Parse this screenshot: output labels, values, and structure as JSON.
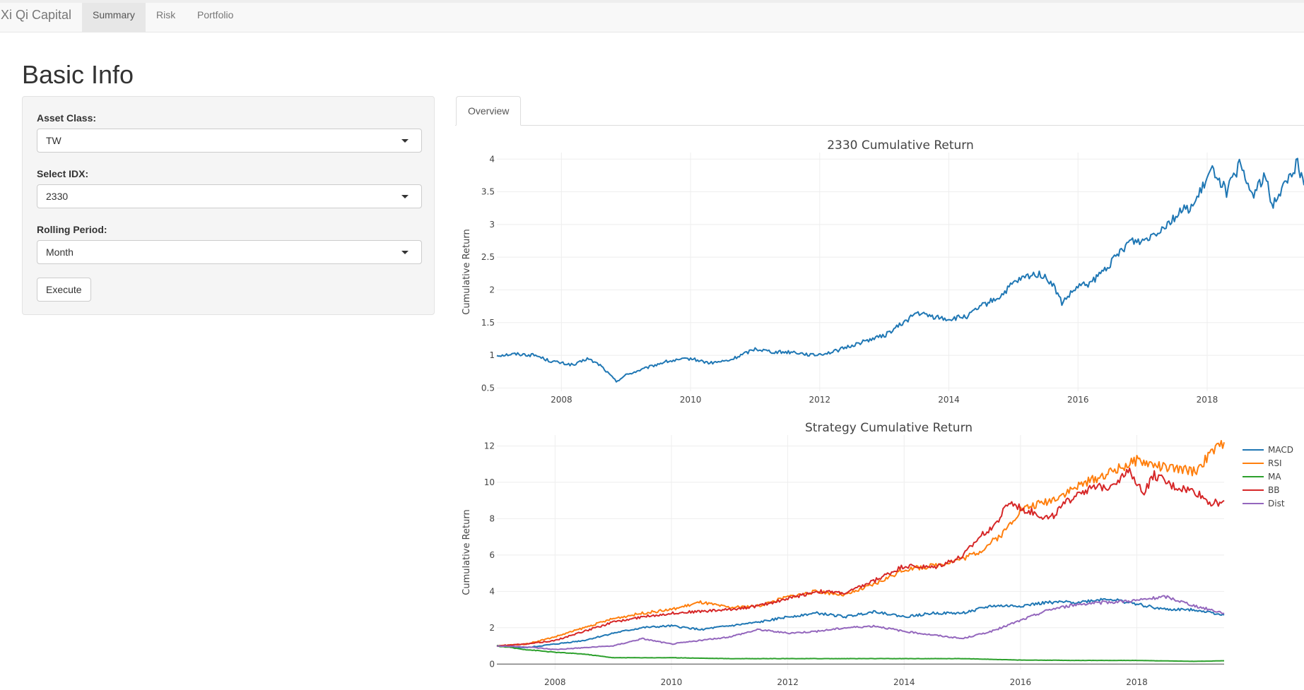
{
  "navbar": {
    "brand": "Xi Qi Capital",
    "tabs": [
      {
        "label": "Summary",
        "active": true
      },
      {
        "label": "Risk",
        "active": false
      },
      {
        "label": "Portfolio",
        "active": false
      }
    ]
  },
  "page": {
    "title": "Basic Info"
  },
  "sidebar": {
    "asset_class": {
      "label": "Asset Class:",
      "value": "TW"
    },
    "select_idx": {
      "label": "Select IDX:",
      "value": "2330"
    },
    "rolling_period": {
      "label": "Rolling Period:",
      "value": "Month"
    },
    "execute_label": "Execute"
  },
  "main": {
    "tabs": [
      {
        "label": "Overview",
        "active": true
      }
    ]
  },
  "colors": {
    "macd": "#1f77b4",
    "rsi": "#ff7f0e",
    "ma": "#2ca02c",
    "bb": "#d62728",
    "dist": "#9467bd"
  },
  "chart_data": [
    {
      "type": "line",
      "title": "2330 Cumulative Return",
      "xlabel": "",
      "ylabel": "Cumulative Return",
      "xlim": [
        2007.0,
        2019.5
      ],
      "ylim": [
        0.45,
        4.1
      ],
      "xticks": [
        2008,
        2010,
        2012,
        2014,
        2016,
        2018
      ],
      "yticks": [
        0.5,
        1,
        1.5,
        2,
        2.5,
        3,
        3.5,
        4
      ],
      "ytick_labels": [
        "0.5",
        "1",
        "1.5",
        "2",
        "2.5",
        "3",
        "3.5",
        "4"
      ],
      "grid": true,
      "legend": "none",
      "series": [
        {
          "color": "#1f77b4",
          "x": [
            2007.0,
            2007.3,
            2007.6,
            2007.8,
            2008.0,
            2008.2,
            2008.4,
            2008.6,
            2008.85,
            2009.0,
            2009.3,
            2009.6,
            2010.0,
            2010.3,
            2010.6,
            2011.0,
            2011.3,
            2011.6,
            2011.9,
            2012.2,
            2012.5,
            2012.8,
            2013.0,
            2013.3,
            2013.5,
            2013.7,
            2014.0,
            2014.3,
            2014.5,
            2014.8,
            2015.0,
            2015.2,
            2015.4,
            2015.6,
            2015.75,
            2016.0,
            2016.2,
            2016.5,
            2016.8,
            2017.0,
            2017.3,
            2017.6,
            2017.8,
            2018.0,
            2018.1,
            2018.3,
            2018.5,
            2018.7,
            2018.9,
            2019.0,
            2019.2,
            2019.4,
            2019.5
          ],
          "y": [
            1.0,
            1.02,
            1.0,
            0.92,
            0.88,
            0.85,
            0.95,
            0.85,
            0.6,
            0.7,
            0.8,
            0.9,
            0.95,
            0.88,
            0.92,
            1.1,
            1.05,
            1.05,
            1.0,
            1.05,
            1.15,
            1.25,
            1.3,
            1.5,
            1.65,
            1.6,
            1.55,
            1.6,
            1.75,
            1.9,
            2.1,
            2.2,
            2.25,
            2.1,
            1.8,
            2.05,
            2.1,
            2.4,
            2.75,
            2.75,
            2.95,
            3.2,
            3.3,
            3.7,
            3.85,
            3.5,
            3.9,
            3.45,
            3.75,
            3.3,
            3.6,
            3.95,
            3.6
          ]
        }
      ]
    },
    {
      "type": "line",
      "title": "Strategy Cumulative Return",
      "xlabel": "",
      "ylabel": "Cumulative Return",
      "xlim": [
        2007.0,
        2019.5
      ],
      "ylim": [
        -0.3,
        12.6
      ],
      "xticks": [
        2008,
        2010,
        2012,
        2014,
        2016,
        2018
      ],
      "yticks": [
        0,
        2,
        4,
        6,
        8,
        10,
        12
      ],
      "ytick_labels": [
        "0",
        "2",
        "4",
        "6",
        "8",
        "10",
        "12"
      ],
      "grid": true,
      "legend": "right",
      "series": [
        {
          "name": "MACD",
          "color": "#1f77b4",
          "x": [
            2007.0,
            2007.5,
            2008.0,
            2008.5,
            2009.0,
            2009.5,
            2010.0,
            2010.5,
            2011.0,
            2011.5,
            2012.0,
            2012.5,
            2013.0,
            2013.5,
            2014.0,
            2014.5,
            2015.0,
            2015.5,
            2016.0,
            2016.5,
            2017.0,
            2017.5,
            2018.0,
            2018.5,
            2019.0,
            2019.5
          ],
          "y": [
            1.0,
            0.9,
            1.1,
            1.3,
            1.7,
            2.0,
            2.1,
            1.9,
            2.1,
            2.3,
            2.6,
            2.8,
            2.6,
            2.9,
            2.6,
            2.8,
            2.8,
            3.2,
            3.2,
            3.4,
            3.4,
            3.6,
            3.3,
            3.0,
            3.0,
            2.7
          ]
        },
        {
          "name": "RSI",
          "color": "#ff7f0e",
          "x": [
            2007.0,
            2007.5,
            2008.0,
            2008.5,
            2009.0,
            2009.5,
            2010.0,
            2010.5,
            2011.0,
            2011.5,
            2012.0,
            2012.5,
            2013.0,
            2013.5,
            2014.0,
            2014.5,
            2015.0,
            2015.3,
            2015.7,
            2016.0,
            2016.5,
            2017.0,
            2017.5,
            2018.0,
            2018.5,
            2019.0,
            2019.3,
            2019.5
          ],
          "y": [
            1.0,
            1.1,
            1.5,
            2.0,
            2.5,
            2.8,
            3.0,
            3.4,
            3.1,
            3.2,
            3.7,
            4.0,
            3.8,
            4.4,
            5.2,
            5.4,
            5.8,
            6.2,
            7.2,
            8.5,
            9.0,
            9.8,
            10.5,
            11.2,
            10.8,
            10.6,
            11.7,
            12.2
          ]
        },
        {
          "name": "MA",
          "color": "#2ca02c",
          "x": [
            2007.0,
            2007.5,
            2008.0,
            2008.5,
            2009.0,
            2010.0,
            2011.0,
            2012.0,
            2013.0,
            2014.0,
            2015.0,
            2016.0,
            2017.0,
            2018.0,
            2019.0,
            2019.5
          ],
          "y": [
            1.0,
            0.8,
            0.65,
            0.55,
            0.35,
            0.35,
            0.3,
            0.3,
            0.3,
            0.3,
            0.3,
            0.22,
            0.2,
            0.2,
            0.15,
            0.18
          ]
        },
        {
          "name": "BB",
          "color": "#d62728",
          "x": [
            2007.0,
            2007.5,
            2008.0,
            2008.5,
            2009.0,
            2009.5,
            2010.0,
            2010.5,
            2011.0,
            2011.5,
            2012.0,
            2012.5,
            2013.0,
            2013.5,
            2014.0,
            2014.5,
            2015.0,
            2015.3,
            2015.6,
            2015.8,
            2016.0,
            2016.5,
            2017.0,
            2017.5,
            2017.9,
            2018.1,
            2018.3,
            2018.6,
            2019.0,
            2019.3,
            2019.5
          ],
          "y": [
            1.0,
            1.1,
            1.3,
            1.8,
            2.3,
            2.6,
            2.8,
            2.9,
            3.0,
            3.2,
            3.6,
            4.0,
            3.9,
            4.6,
            5.4,
            5.3,
            5.9,
            7.0,
            7.8,
            8.9,
            8.6,
            8.0,
            9.5,
            9.8,
            10.6,
            9.4,
            10.4,
            9.8,
            9.5,
            8.8,
            9.0
          ]
        },
        {
          "name": "Dist",
          "color": "#9467bd",
          "x": [
            2007.0,
            2007.5,
            2008.0,
            2008.5,
            2009.0,
            2009.5,
            2010.0,
            2010.5,
            2011.0,
            2011.5,
            2012.0,
            2012.5,
            2013.0,
            2013.5,
            2014.0,
            2014.5,
            2015.0,
            2015.5,
            2016.0,
            2016.5,
            2017.0,
            2017.5,
            2018.0,
            2018.5,
            2019.0,
            2019.5
          ],
          "y": [
            1.0,
            0.95,
            0.8,
            0.9,
            1.0,
            1.4,
            1.1,
            1.3,
            1.5,
            1.9,
            1.7,
            1.8,
            2.0,
            2.1,
            1.8,
            1.6,
            1.4,
            1.8,
            2.4,
            3.0,
            3.3,
            3.4,
            3.5,
            3.7,
            3.2,
            2.8
          ]
        }
      ]
    }
  ]
}
